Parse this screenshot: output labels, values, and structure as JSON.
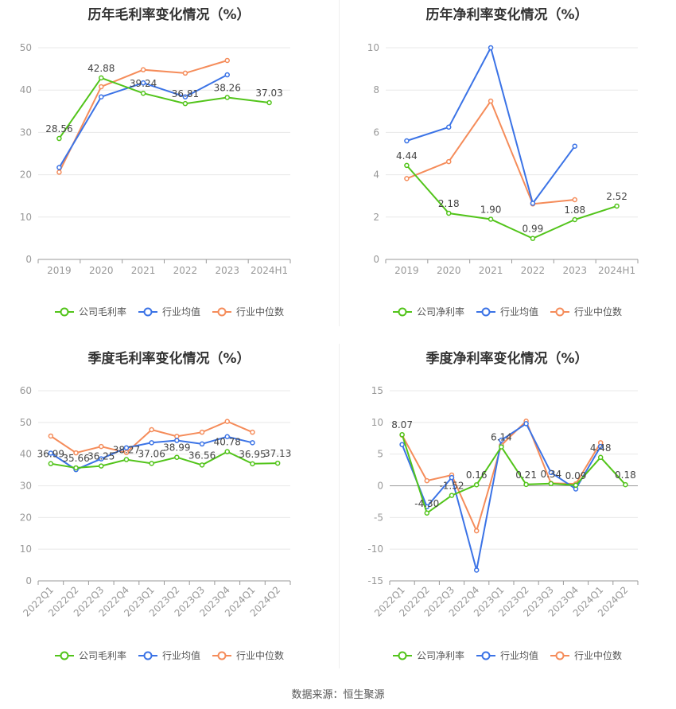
{
  "source": "数据来源：恒生聚源",
  "chart_data": [
    {
      "type": "line",
      "title": "历年毛利率变化情况（%）",
      "categories": [
        "2019",
        "2020",
        "2021",
        "2022",
        "2023",
        "2024H1"
      ],
      "ylim": [
        0,
        50
      ],
      "yticks": [
        0,
        10,
        20,
        30,
        40,
        50
      ],
      "legend": "bottom",
      "series": [
        {
          "name": "公司毛利率",
          "color": "#52c41a",
          "values": [
            28.56,
            42.88,
            39.24,
            36.81,
            38.26,
            37.03
          ],
          "labels": [
            "28.56",
            "42.88",
            "39.24",
            "36.81",
            "38.26",
            "37.03"
          ]
        },
        {
          "name": "行业均值",
          "color": "#3b73e6",
          "values": [
            21.7,
            38.4,
            41.7,
            38.4,
            43.6,
            null
          ]
        },
        {
          "name": "行业中位数",
          "color": "#f58c5a",
          "values": [
            20.6,
            40.8,
            44.8,
            44.0,
            47.0,
            null
          ]
        }
      ]
    },
    {
      "type": "line",
      "title": "历年净利率变化情况（%）",
      "categories": [
        "2019",
        "2020",
        "2021",
        "2022",
        "2023",
        "2024H1"
      ],
      "ylim": [
        0,
        10
      ],
      "yticks": [
        0,
        2,
        4,
        6,
        8,
        10
      ],
      "legend": "bottom",
      "series": [
        {
          "name": "公司净利率",
          "color": "#52c41a",
          "values": [
            4.44,
            2.18,
            1.9,
            0.99,
            1.88,
            2.52
          ],
          "labels": [
            "4.44",
            "2.18",
            "1.90",
            "0.99",
            "1.88",
            "2.52"
          ]
        },
        {
          "name": "行业均值",
          "color": "#3b73e6",
          "values": [
            5.6,
            6.25,
            10.0,
            2.65,
            5.35,
            null
          ]
        },
        {
          "name": "行业中位数",
          "color": "#f58c5a",
          "values": [
            3.82,
            4.62,
            7.48,
            2.62,
            2.82,
            null
          ]
        }
      ]
    },
    {
      "type": "line",
      "title": "季度毛利率变化情况（%）",
      "categories": [
        "2022Q1",
        "2022Q2",
        "2022Q3",
        "2022Q4",
        "2023Q1",
        "2023Q2",
        "2023Q3",
        "2023Q4",
        "2024Q1",
        "2024Q2"
      ],
      "ylim": [
        0,
        60
      ],
      "yticks": [
        0,
        10,
        20,
        30,
        40,
        50,
        60
      ],
      "legend": "bottom",
      "series": [
        {
          "name": "公司毛利率",
          "color": "#52c41a",
          "values": [
            36.99,
            35.66,
            36.25,
            38.27,
            37.06,
            38.99,
            36.56,
            40.78,
            36.95,
            37.13
          ],
          "labels": [
            "36.99",
            "35.66",
            "36.25",
            "38.27",
            "37.06",
            "38.99",
            "36.56",
            "40.78",
            "36.95",
            "37.13"
          ]
        },
        {
          "name": "行业均值",
          "color": "#3b73e6",
          "values": [
            40.3,
            35.1,
            38.5,
            42.0,
            43.6,
            44.3,
            43.2,
            45.5,
            43.6,
            null
          ]
        },
        {
          "name": "行业中位数",
          "color": "#f58c5a",
          "values": [
            45.7,
            40.4,
            42.4,
            40.5,
            47.7,
            45.6,
            46.9,
            50.3,
            46.9,
            null
          ]
        }
      ]
    },
    {
      "type": "line",
      "title": "季度净利率变化情况（%）",
      "categories": [
        "2022Q1",
        "2022Q2",
        "2022Q3",
        "2022Q4",
        "2023Q1",
        "2023Q2",
        "2023Q3",
        "2023Q4",
        "2024Q1",
        "2024Q2"
      ],
      "ylim": [
        -15,
        15
      ],
      "yticks": [
        -15,
        -10,
        -5,
        0,
        5,
        10,
        15
      ],
      "legend": "bottom",
      "series": [
        {
          "name": "公司净利率",
          "color": "#52c41a",
          "values": [
            8.07,
            -4.3,
            -1.52,
            0.16,
            6.14,
            0.21,
            0.34,
            0.09,
            4.48,
            0.18
          ],
          "labels": [
            "8.07",
            "-4.30",
            "-1.52",
            "0.16",
            "6.14",
            "0.21",
            "0.34",
            "0.09",
            "4.48",
            "0.18"
          ]
        },
        {
          "name": "行业均值",
          "color": "#3b73e6",
          "values": [
            6.5,
            -3.3,
            1.3,
            -13.3,
            7.2,
            9.8,
            2.1,
            -0.5,
            6.2,
            null
          ]
        },
        {
          "name": "行业中位数",
          "color": "#f58c5a",
          "values": [
            8.0,
            0.8,
            1.7,
            -7.1,
            6.4,
            10.2,
            0.4,
            0.3,
            6.8,
            null
          ]
        }
      ]
    }
  ]
}
